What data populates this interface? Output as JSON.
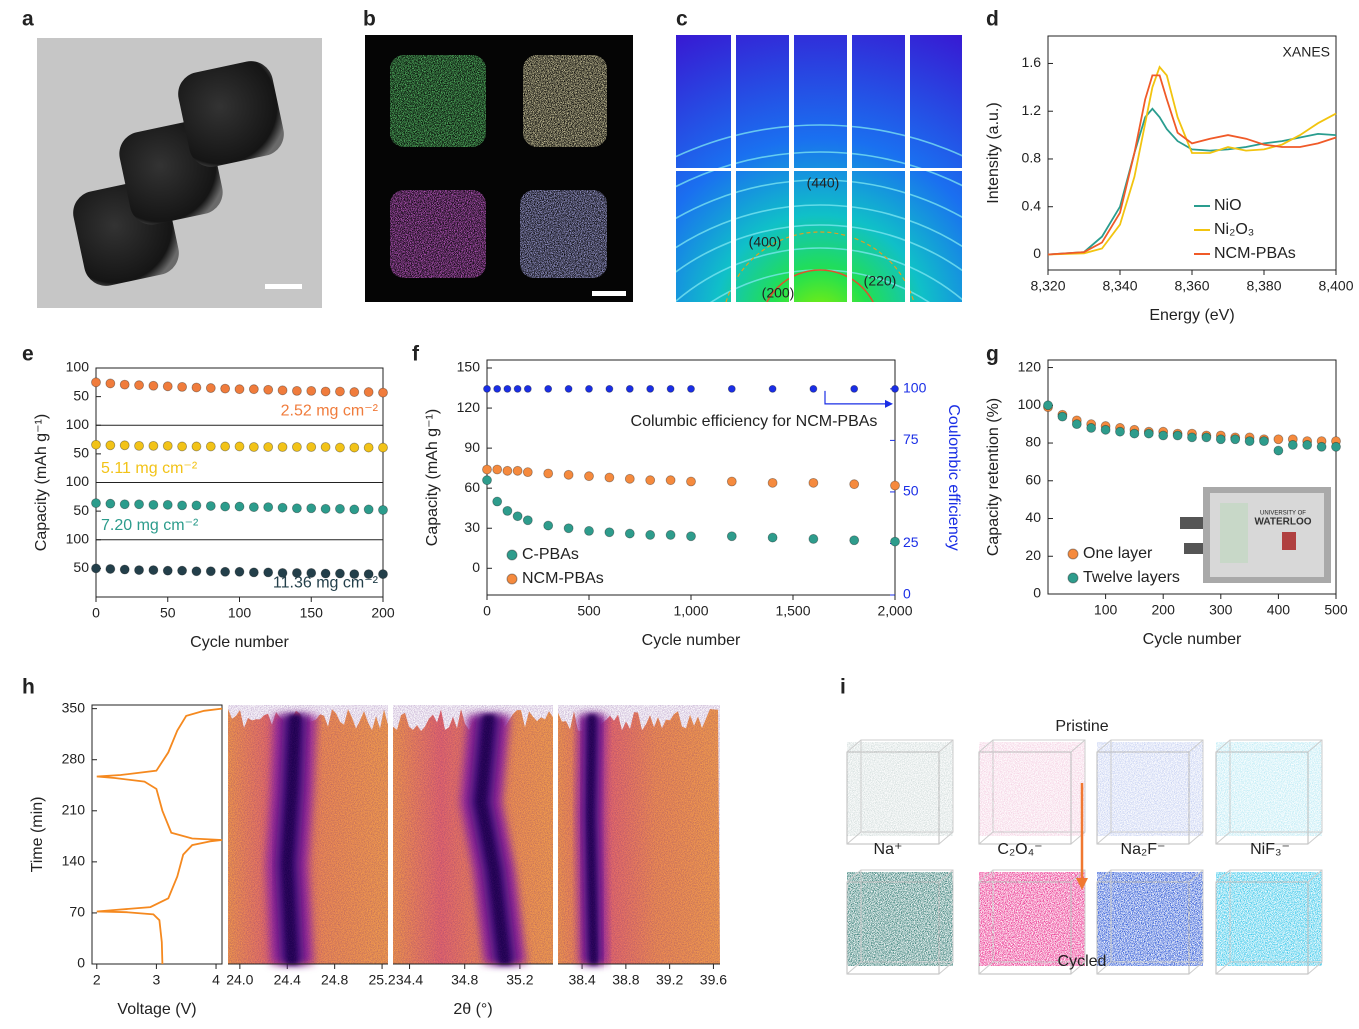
{
  "panel_labels": [
    "a",
    "b",
    "c",
    "d",
    "e",
    "f",
    "g",
    "h",
    "i"
  ],
  "panel_c": {
    "reflections": [
      "(440)",
      "(400)",
      "(220)",
      "(200)"
    ]
  },
  "panel_g_inset": {
    "lines": [
      "UNIVERSITY OF",
      "WATERLOO"
    ]
  },
  "panel_i": {
    "top": "Pristine",
    "bottom": "Cycled",
    "species": [
      "Na⁺",
      "C₂O₄⁻",
      "Na₂F⁻",
      "NiF₃⁻"
    ]
  },
  "chart_data": [
    {
      "type": "line",
      "title": "XANES",
      "xlabel": "Energy (eV)",
      "ylabel": "Intensity (a.u.)",
      "x": [
        8320,
        8330,
        8335,
        8340,
        8344,
        8347,
        8349,
        8351,
        8353,
        8356,
        8360,
        8365,
        8370,
        8375,
        8380,
        8385,
        8390,
        8395,
        8400
      ],
      "xlim": [
        8320,
        8400
      ],
      "xticks": [
        {
          "value": 8320,
          "label": "8,320"
        },
        {
          "value": 8340,
          "label": "8,340"
        },
        {
          "value": 8360,
          "label": "8,360"
        },
        {
          "value": 8380,
          "label": "8,380"
        },
        {
          "value": 8400,
          "label": "8,400"
        }
      ],
      "ylim": [
        -0.13,
        1.83
      ],
      "yticks": [
        0,
        0.4,
        0.8,
        1.2,
        1.6
      ],
      "legend": "lower right",
      "series": [
        {
          "name": "NiO",
          "color": "#2a9d8f",
          "values": [
            0,
            0.02,
            0.15,
            0.4,
            0.85,
            1.15,
            1.22,
            1.15,
            1.05,
            0.95,
            0.88,
            0.87,
            0.88,
            0.9,
            0.93,
            0.95,
            0.98,
            1.01,
            1.0
          ]
        },
        {
          "name": "Ni₂O₃",
          "color": "#f2c40f",
          "values": [
            0,
            0.01,
            0.05,
            0.25,
            0.65,
            1.1,
            1.4,
            1.57,
            1.5,
            1.15,
            0.85,
            0.85,
            0.9,
            0.87,
            0.88,
            0.92,
            1.0,
            1.1,
            1.18
          ]
        },
        {
          "name": "NCM-PBAs",
          "color": "#f05a28",
          "values": [
            0,
            0.02,
            0.1,
            0.35,
            0.85,
            1.3,
            1.5,
            1.5,
            1.3,
            1.02,
            0.93,
            0.97,
            1.0,
            0.97,
            0.92,
            0.9,
            0.9,
            0.93,
            0.98
          ]
        }
      ]
    },
    {
      "type": "scatter",
      "stacked_panels": true,
      "xlabel": "Cycle number",
      "ylabel": "Capacity (mAh g⁻¹)",
      "x": [
        0,
        10,
        20,
        30,
        40,
        50,
        60,
        70,
        80,
        90,
        100,
        110,
        120,
        130,
        140,
        150,
        160,
        170,
        180,
        190,
        200
      ],
      "xlim": [
        0,
        200
      ],
      "xticks": [
        0,
        50,
        100,
        150,
        200
      ],
      "ylim": [
        0,
        100
      ],
      "yticks": [
        50,
        100
      ],
      "series": [
        {
          "name": "2.52 mg cm⁻²",
          "color": "#f07c3c",
          "values": [
            75,
            73,
            71,
            70,
            69,
            68,
            67,
            66,
            65,
            64,
            63,
            63,
            62,
            61,
            60,
            60,
            59,
            59,
            58,
            58,
            57
          ]
        },
        {
          "name": "5.11 mg cm⁻²",
          "color": "#f2c318",
          "values": [
            66,
            65,
            65,
            64,
            64,
            64,
            63,
            63,
            63,
            63,
            63,
            62,
            62,
            62,
            62,
            62,
            62,
            61,
            61,
            61,
            61
          ]
        },
        {
          "name": "7.20 mg cm⁻²",
          "color": "#2c9c8c",
          "values": [
            64,
            63,
            62,
            62,
            61,
            61,
            60,
            60,
            59,
            58,
            58,
            57,
            57,
            56,
            55,
            55,
            54,
            54,
            53,
            53,
            52
          ]
        },
        {
          "name": "11.36 mg cm⁻²",
          "color": "#233f4a",
          "values": [
            50,
            49,
            48,
            47,
            47,
            46,
            46,
            45,
            45,
            44,
            44,
            43,
            43,
            42,
            42,
            42,
            41,
            41,
            40,
            40,
            40
          ]
        }
      ]
    },
    {
      "type": "scatter",
      "xlabel": "Cycle number",
      "ylabel": "Capacity (mAh g⁻¹)",
      "y2label": "Coulombic efficiency",
      "x": [
        0,
        50,
        100,
        150,
        200,
        300,
        400,
        500,
        600,
        700,
        800,
        900,
        1000,
        1200,
        1400,
        1600,
        1800,
        2000
      ],
      "xlim": [
        0,
        2000
      ],
      "xticks": [
        0,
        500,
        {
          "value": 1000,
          "label": "1,000"
        },
        {
          "value": 1500,
          "label": "1,500"
        },
        {
          "value": 2000,
          "label": "2,000"
        }
      ],
      "ylim": [
        -20,
        156
      ],
      "yticks": [
        0,
        30,
        60,
        90,
        120,
        150
      ],
      "y2lim": [
        0,
        114
      ],
      "y2ticks": [
        0,
        25,
        50,
        75,
        100
      ],
      "legend": "lower left",
      "series": [
        {
          "name": "C-PBAs",
          "color": "#2e9c8c",
          "values": [
            66,
            50,
            43,
            39,
            36,
            32,
            30,
            28,
            27,
            26,
            25,
            25,
            24,
            24,
            23,
            22,
            21,
            20
          ]
        },
        {
          "name": "NCM-PBAs",
          "color": "#f58a3e",
          "values": [
            74,
            74,
            73,
            73,
            72,
            71,
            70,
            69,
            68,
            67,
            66,
            66,
            65,
            65,
            64,
            64,
            63,
            62
          ]
        },
        {
          "name": "Columbic efficiency for NCM-PBAs",
          "color": "#1a2ee6",
          "axis": "y2",
          "values": [
            100,
            100,
            100,
            100,
            100,
            100,
            100,
            100,
            100,
            100,
            100,
            100,
            100,
            100,
            100,
            100,
            100,
            100
          ]
        }
      ]
    },
    {
      "type": "scatter",
      "xlabel": "Cycle number",
      "ylabel": "Capacity retention (%)",
      "x": [
        0,
        25,
        50,
        75,
        100,
        125,
        150,
        175,
        200,
        225,
        250,
        275,
        300,
        325,
        350,
        375,
        400,
        425,
        450,
        475,
        500
      ],
      "xlim": [
        0,
        500
      ],
      "xticks": [
        100,
        200,
        300,
        400,
        500
      ],
      "ylim": [
        0,
        124
      ],
      "yticks": [
        0,
        20,
        40,
        60,
        80,
        100,
        120
      ],
      "legend": "lower left",
      "series": [
        {
          "name": "One layer",
          "color": "#f58a3e",
          "values": [
            99,
            95,
            92,
            90,
            89,
            88,
            87,
            86,
            86,
            85,
            85,
            84,
            84,
            83,
            83,
            82,
            82,
            82,
            81,
            81,
            81
          ]
        },
        {
          "name": "Twelve layers",
          "color": "#2e9c8c",
          "values": [
            100,
            94,
            90,
            88,
            87,
            86,
            85,
            85,
            84,
            84,
            83,
            83,
            82,
            82,
            81,
            81,
            76,
            79,
            79,
            78,
            78
          ]
        }
      ]
    },
    {
      "type": "line",
      "xlabel": "Voltage (V)",
      "ylabel": "Time (min)",
      "color": "#f5891f",
      "x": [
        3.1,
        3.09,
        3.05,
        2.95,
        2.5,
        2.0,
        2.3,
        2.9,
        3.2,
        3.35,
        3.45,
        3.6,
        3.9,
        4.1,
        3.6,
        3.25,
        3.1,
        3.0,
        2.8,
        2.3,
        2.0,
        2.4,
        3.0,
        3.2,
        3.35,
        3.5,
        3.8,
        4.1
      ],
      "values": [
        0,
        30,
        60,
        68,
        71,
        72,
        74,
        78,
        90,
        120,
        150,
        163,
        168,
        170,
        172,
        180,
        210,
        240,
        250,
        255,
        257,
        259,
        265,
        290,
        320,
        340,
        347,
        350
      ],
      "xlim": [
        1.92,
        4.1
      ],
      "xticks": [
        2,
        3,
        4
      ],
      "ylim": [
        0,
        355
      ],
      "yticks": [
        0,
        70,
        140,
        210,
        280,
        350
      ]
    },
    {
      "type": "intensity-map",
      "xlim": [
        23.9,
        25.25
      ],
      "xticks": [
        {
          "value": 24,
          "label": "24.0"
        },
        24.4,
        24.8,
        25.2
      ]
    },
    {
      "type": "intensity-map",
      "xlabel": "2θ (°)",
      "xlim": [
        34.28,
        35.44
      ],
      "xticks": [
        34.4,
        34.8,
        35.2
      ]
    },
    {
      "type": "intensity-map",
      "xlim": [
        38.18,
        39.66
      ],
      "xticks": [
        38.4,
        38.8,
        39.2,
        39.6
      ]
    }
  ]
}
